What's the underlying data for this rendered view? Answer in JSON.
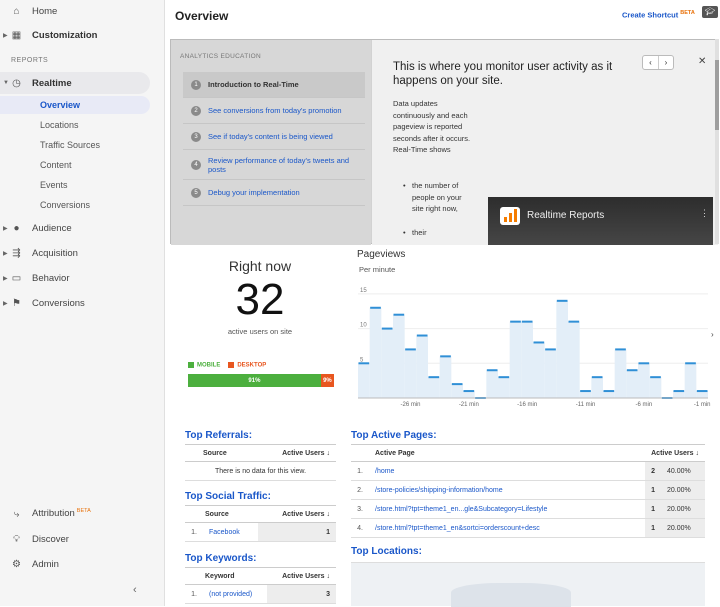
{
  "sidebar": {
    "home": "Home",
    "customization": "Customization",
    "reports_label": "REPORTS",
    "realtime": "Realtime",
    "realtime_sub": [
      "Overview",
      "Locations",
      "Traffic Sources",
      "Content",
      "Events",
      "Conversions"
    ],
    "audience": "Audience",
    "acquisition": "Acquisition",
    "behavior": "Behavior",
    "conversions": "Conversions",
    "attribution": "Attribution",
    "attribution_badge": "BETA",
    "discover": "Discover",
    "admin": "Admin"
  },
  "header": {
    "title": "Overview",
    "create_shortcut": "Create Shortcut",
    "create_shortcut_badge": "BETA"
  },
  "education": {
    "heading": "ANALYTICS EDUCATION",
    "steps": [
      {
        "num": "1",
        "text": "Introduction to Real-Time"
      },
      {
        "num": "2",
        "text": "See conversions from today's promotion"
      },
      {
        "num": "3",
        "text": "See if today's content is being viewed"
      },
      {
        "num": "4",
        "text": "Review performance of today's tweets and posts"
      },
      {
        "num": "5",
        "text": "Debug your implementation"
      }
    ],
    "title": "This is where you monitor user activity as it happens on your site.",
    "paragraph": "Data updates continuously and each pageview is reported seconds after it occurs. Real-Time shows",
    "bullet": "the number of people on your site right now,",
    "bullet_cut": "their",
    "video_title": "Realtime Reports"
  },
  "right_now": {
    "label": "Right now",
    "count": "32",
    "sub": "active users on site",
    "mobile_label": "MOBILE",
    "desktop_label": "DESKTOP",
    "mobile_pct": "91%",
    "desktop_pct": "9%",
    "mobile_share": 0.91,
    "colors": {
      "mobile": "#4caf3e",
      "desktop": "#e8561f"
    }
  },
  "chart_data": {
    "type": "bar",
    "title": "Pageviews",
    "ylabel": "Per minute",
    "ylim": [
      0,
      17
    ],
    "yticks": [
      5,
      10,
      15
    ],
    "x_tick_labels": [
      "-26 min",
      "-21 min",
      "-16 min",
      "-11 min",
      "-6 min",
      "-1 min"
    ],
    "x_tick_positions": [
      -26,
      -21,
      -16,
      -11,
      -6,
      -1
    ],
    "x": [
      -30,
      -29,
      -28,
      -27,
      -26,
      -25,
      -24,
      -23,
      -22,
      -21,
      -20,
      -19,
      -18,
      -17,
      -16,
      -15,
      -14,
      -13,
      -12,
      -11,
      -10,
      -9,
      -8,
      -7,
      -6,
      -5,
      -4,
      -3,
      -2,
      -1
    ],
    "values": [
      5,
      13,
      10,
      12,
      7,
      9,
      3,
      6,
      2,
      1,
      0,
      4,
      3,
      11,
      11,
      8,
      7,
      14,
      11,
      1,
      3,
      1,
      7,
      4,
      5,
      3,
      0,
      1,
      5,
      1
    ]
  },
  "top_referrals": {
    "title": "Top Referrals:",
    "col_source": "Source",
    "col_users": "Active Users",
    "empty": "There is no data for this view."
  },
  "top_social": {
    "title": "Top Social Traffic:",
    "col_source": "Source",
    "col_users": "Active Users",
    "rows": [
      {
        "num": "1.",
        "source": "Facebook",
        "users": "1"
      }
    ]
  },
  "top_keywords": {
    "title": "Top Keywords:",
    "col_keyword": "Keyword",
    "col_users": "Active Users",
    "rows": [
      {
        "num": "1.",
        "keyword": "(not provided)",
        "users": "3"
      }
    ]
  },
  "top_pages": {
    "title": "Top Active Pages:",
    "col_page": "Active Page",
    "col_users": "Active Users",
    "rows": [
      {
        "num": "1.",
        "page": "/home",
        "users": "2",
        "pct": "40.00%"
      },
      {
        "num": "2.",
        "page": "/store-policies/shipping-information/home",
        "users": "1",
        "pct": "20.00%"
      },
      {
        "num": "3.",
        "page": "/store.html?tpt=theme1_en...gle&Subcategory=Lifestyle",
        "users": "1",
        "pct": "20.00%"
      },
      {
        "num": "4.",
        "page": "/store.html?tpt=theme1_en&sortci=orderscount+desc",
        "users": "1",
        "pct": "20.00%"
      }
    ]
  },
  "top_locations": {
    "title": "Top Locations:"
  },
  "colors": {
    "bar": "#e3eef8",
    "bar_top": "#2f8fd6",
    "link": "#1a57c9"
  }
}
